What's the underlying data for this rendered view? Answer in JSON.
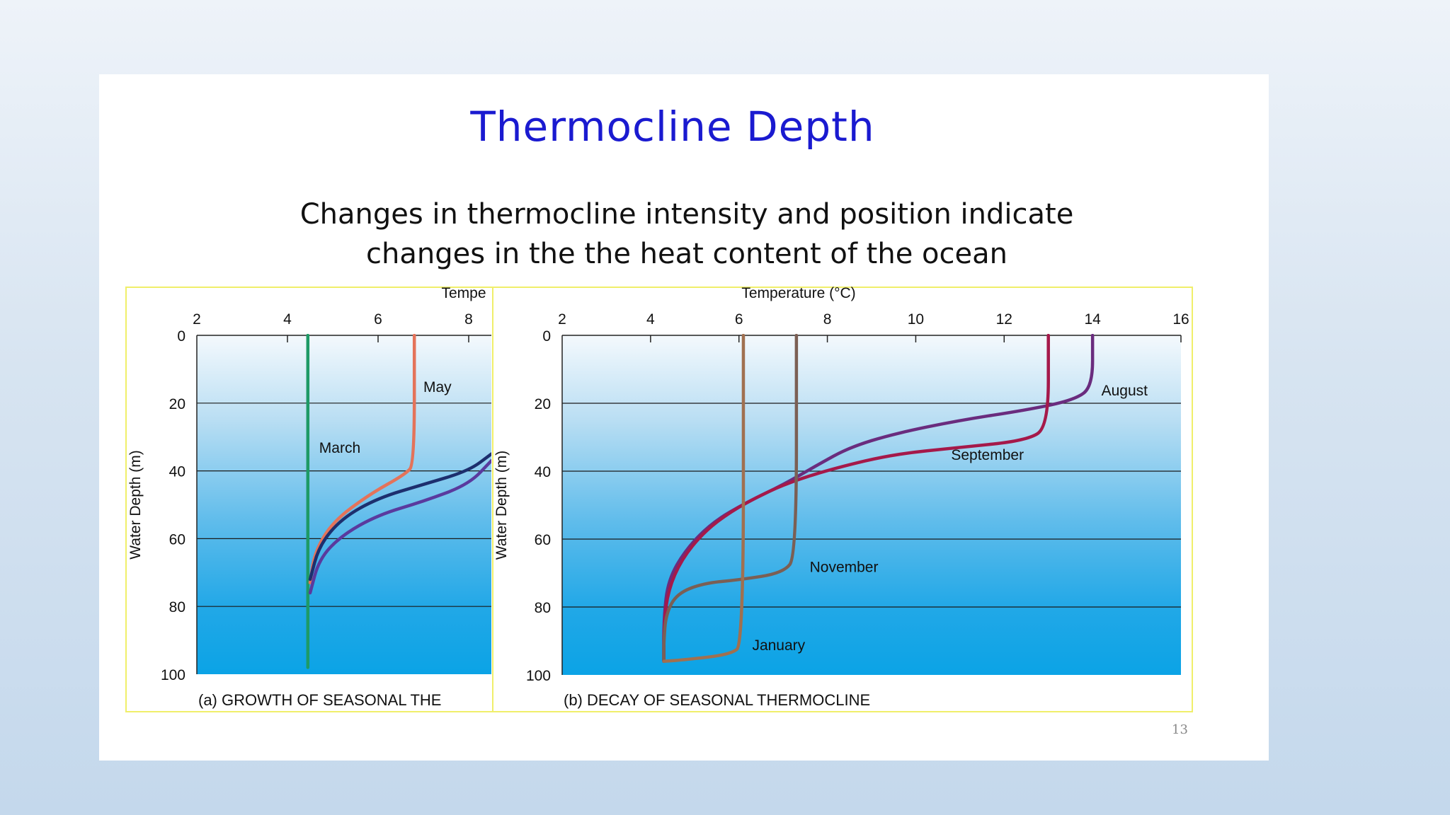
{
  "slide": {
    "title": "Thermocline Depth",
    "subtitle_line1": "Changes in thermocline intensity and position indicate",
    "subtitle_line2": "changes in the the heat content of the ocean",
    "page_number": "13"
  },
  "chart_data": [
    {
      "type": "line",
      "caption": "(a) GROWTH OF SEASONAL THE",
      "xlabel": "Tempe",
      "ylabel": "Water Depth (m)",
      "xlim": [
        2,
        8.5
      ],
      "ylim": [
        0,
        100
      ],
      "x_ticks": [
        2,
        4,
        6,
        8
      ],
      "y_ticks": [
        0,
        20,
        40,
        60,
        80,
        100
      ],
      "y_inverted": true,
      "grid": "horizontal",
      "colors": {
        "background_top": "#f4f9fd",
        "background_bottom": "#0ba3e6"
      },
      "series": [
        {
          "name": "March",
          "color": "#1e9a66",
          "points": [
            [
              4.45,
              0
            ],
            [
              4.45,
              98
            ]
          ]
        },
        {
          "name": "May",
          "color": "#e4735a",
          "points": [
            [
              6.8,
              0
            ],
            [
              6.8,
              38
            ],
            [
              6.6,
              41
            ],
            [
              5.8,
              47
            ],
            [
              5.0,
              55
            ],
            [
              4.6,
              64
            ],
            [
              4.5,
              73
            ]
          ]
        },
        {
          "name": "",
          "color": "#1d2f6e",
          "points": [
            [
              8.5,
              35
            ],
            [
              8.0,
              40
            ],
            [
              7.0,
              44
            ],
            [
              6.0,
              48
            ],
            [
              5.2,
              54
            ],
            [
              4.7,
              62
            ],
            [
              4.5,
              72
            ]
          ]
        },
        {
          "name": "",
          "color": "#5a3a9e",
          "points": [
            [
              8.5,
              37
            ],
            [
              8.0,
              44
            ],
            [
              7.0,
              49
            ],
            [
              6.0,
              53
            ],
            [
              5.2,
              59
            ],
            [
              4.7,
              66
            ],
            [
              4.5,
              76
            ]
          ]
        }
      ]
    },
    {
      "type": "line",
      "caption": "(b) DECAY OF SEASONAL THERMOCLINE",
      "xlabel": "Temperature (°C)",
      "ylabel": "Water Depth (m)",
      "xlim": [
        2,
        16
      ],
      "ylim": [
        0,
        100
      ],
      "x_ticks": [
        2,
        4,
        6,
        8,
        10,
        12,
        14,
        16
      ],
      "y_ticks": [
        0,
        20,
        40,
        60,
        80,
        100
      ],
      "y_inverted": true,
      "grid": "horizontal",
      "colors": {
        "background_top": "#f4f9fd",
        "background_bottom": "#0ba3e6"
      },
      "series": [
        {
          "name": "August",
          "color": "#6a2c7e",
          "points": [
            [
              14,
              0
            ],
            [
              14,
              15
            ],
            [
              13.6,
              19
            ],
            [
              12.5,
              22
            ],
            [
              11,
              25
            ],
            [
              9.5,
              29
            ],
            [
              8.5,
              33
            ],
            [
              7.8,
              38
            ],
            [
              7.0,
              44
            ],
            [
              6.2,
              49
            ],
            [
              5.4,
              55
            ],
            [
              4.8,
              63
            ],
            [
              4.4,
              72
            ],
            [
              4.3,
              83
            ],
            [
              4.3,
              96
            ]
          ]
        },
        {
          "name": "September",
          "color": "#a5194a",
          "points": [
            [
              13,
              0
            ],
            [
              13,
              27
            ],
            [
              12.5,
              31
            ],
            [
              11,
              33
            ],
            [
              9.5,
              35
            ],
            [
              8.2,
              39
            ],
            [
              7.2,
              43
            ],
            [
              6.5,
              47
            ],
            [
              5.8,
              52
            ],
            [
              5.2,
              58
            ],
            [
              4.7,
              66
            ],
            [
              4.4,
              75
            ],
            [
              4.3,
              85
            ],
            [
              4.3,
              96
            ]
          ]
        },
        {
          "name": "November",
          "color": "#7b5f54",
          "points": [
            [
              7.3,
              0
            ],
            [
              7.3,
              65
            ],
            [
              7.0,
              70
            ],
            [
              6.0,
              72
            ],
            [
              5.2,
              73
            ],
            [
              4.6,
              76
            ],
            [
              4.35,
              82
            ],
            [
              4.3,
              90
            ],
            [
              4.3,
              96
            ]
          ]
        },
        {
          "name": "January",
          "color": "#a07050",
          "points": [
            [
              6.1,
              0
            ],
            [
              6.1,
              91
            ],
            [
              5.8,
              94
            ],
            [
              4.8,
              95.5
            ],
            [
              4.3,
              96
            ]
          ]
        }
      ],
      "annotations": [
        {
          "text": "August",
          "x": 14.2,
          "y": 16
        },
        {
          "text": "September",
          "x": 10.8,
          "y": 35
        },
        {
          "text": "November",
          "x": 7.6,
          "y": 68
        },
        {
          "text": "January",
          "x": 6.3,
          "y": 91
        }
      ]
    }
  ],
  "panel_a_annotations": [
    {
      "text": "May",
      "x": 7.0,
      "y": 15
    },
    {
      "text": "March",
      "x": 4.7,
      "y": 33
    }
  ]
}
